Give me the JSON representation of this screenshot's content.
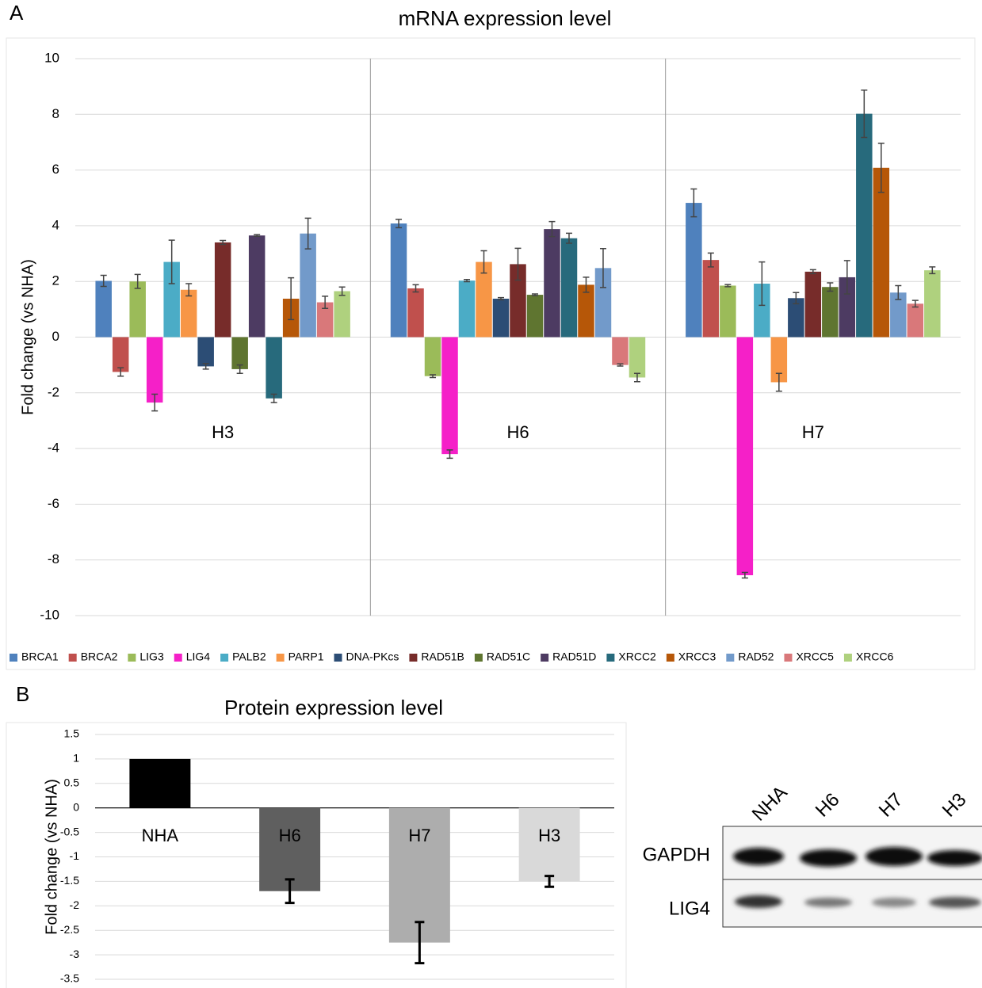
{
  "panels": [
    "A",
    "B"
  ],
  "chart_data": [
    {
      "type": "bar",
      "title": "mRNA expression level",
      "ylabel": "Fold change (vs NHA)",
      "categories": [
        "H3",
        "H6",
        "H7"
      ],
      "series": [
        {
          "name": "BRCA1",
          "color": "#4f81bd",
          "values": [
            2.02,
            4.08,
            4.82
          ],
          "errors": [
            0.2,
            0.15,
            0.5
          ]
        },
        {
          "name": "BRCA2",
          "color": "#c0504d",
          "values": [
            -1.25,
            1.75,
            2.77
          ],
          "errors": [
            0.15,
            0.13,
            0.25
          ]
        },
        {
          "name": "LIG3",
          "color": "#9bbb59",
          "values": [
            2.0,
            -1.4,
            1.85
          ],
          "errors": [
            0.25,
            0.05,
            0.04
          ]
        },
        {
          "name": "LIG4",
          "color": "#f520c8",
          "values": [
            -2.35,
            -4.2,
            -8.55
          ],
          "errors": [
            0.3,
            0.15,
            0.1
          ]
        },
        {
          "name": "PALB2",
          "color": "#4bacc6",
          "values": [
            2.7,
            2.03,
            1.92
          ],
          "errors": [
            0.78,
            0.04,
            0.78
          ]
        },
        {
          "name": "PARP1",
          "color": "#f79646",
          "values": [
            1.7,
            2.7,
            -1.62
          ],
          "errors": [
            0.22,
            0.4,
            0.32
          ]
        },
        {
          "name": "DNA-PKcs",
          "color": "#2c4d75",
          "values": [
            -1.05,
            1.38,
            1.4
          ],
          "errors": [
            0.1,
            0.04,
            0.2
          ]
        },
        {
          "name": "RAD51B",
          "color": "#772c2a",
          "values": [
            3.4,
            2.62,
            2.35
          ],
          "errors": [
            0.07,
            0.57,
            0.07
          ]
        },
        {
          "name": "RAD51C",
          "color": "#5f7530",
          "values": [
            -1.15,
            1.52,
            1.8
          ],
          "errors": [
            0.15,
            0.03,
            0.15
          ]
        },
        {
          "name": "RAD51D",
          "color": "#4d3b62",
          "values": [
            3.65,
            3.88,
            2.15
          ],
          "errors": [
            0.03,
            0.27,
            0.6
          ]
        },
        {
          "name": "XRCC2",
          "color": "#276a7c",
          "values": [
            -2.2,
            3.55,
            8.02
          ],
          "errors": [
            0.15,
            0.18,
            0.85
          ]
        },
        {
          "name": "XRCC3",
          "color": "#b65708",
          "values": [
            1.38,
            1.88,
            6.08
          ],
          "errors": [
            0.75,
            0.27,
            0.88
          ]
        },
        {
          "name": "RAD52",
          "color": "#729aca",
          "values": [
            3.72,
            2.48,
            1.6
          ],
          "errors": [
            0.55,
            0.7,
            0.25
          ]
        },
        {
          "name": "XRCC5",
          "color": "#d9787a",
          "values": [
            1.25,
            -1.0,
            1.2
          ],
          "errors": [
            0.22,
            0.04,
            0.12
          ]
        },
        {
          "name": "XRCC6",
          "color": "#afd17e",
          "values": [
            1.65,
            -1.45,
            2.4
          ],
          "errors": [
            0.15,
            0.15,
            0.12
          ]
        }
      ],
      "ylim": [
        -10,
        10
      ],
      "yticks": [
        -10,
        -8,
        -6,
        -4,
        -2,
        0,
        2,
        4,
        6,
        8,
        10
      ],
      "grid": true,
      "legend": "bottom"
    },
    {
      "type": "bar",
      "title": "Protein expression level",
      "ylabel": "Fold change (vs NHA)",
      "categories": [
        "NHA",
        "H6",
        "H7",
        "H3"
      ],
      "values": [
        1,
        -1.7,
        -2.75,
        -1.5
      ],
      "errors": [
        null,
        0.24,
        0.42,
        0.11
      ],
      "colors": [
        "#000000",
        "#5f5f5f",
        "#adadad",
        "#d9d9d9"
      ],
      "ylim": [
        -3.5,
        1.5
      ],
      "yticks": [
        -3.5,
        -3,
        -2.5,
        -2,
        -1.5,
        -1,
        -0.5,
        0,
        0.5,
        1,
        1.5
      ],
      "grid": true
    }
  ],
  "blot": {
    "lanes": [
      "NHA",
      "H6",
      "H7",
      "H3"
    ],
    "rows": [
      "GAPDH",
      "LIG4"
    ]
  }
}
